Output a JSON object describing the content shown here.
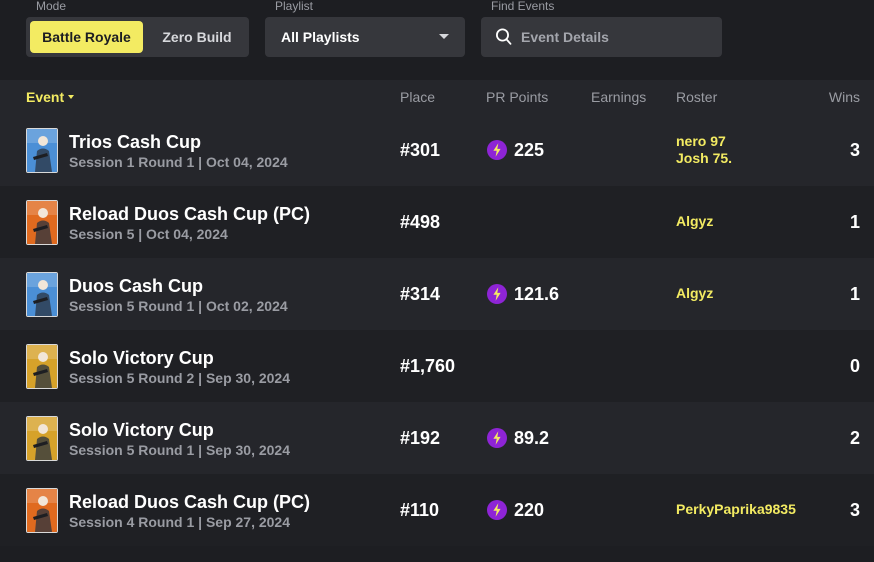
{
  "filters": {
    "mode_label": "Mode",
    "mode_options": [
      "Battle Royale",
      "Zero Build"
    ],
    "playlist_label": "Playlist",
    "playlist_value": "All Playlists",
    "find_label": "Find Events",
    "search_placeholder": "Event Details"
  },
  "table": {
    "headers": {
      "event": "Event",
      "place": "Place",
      "pr_points": "PR Points",
      "earnings": "Earnings",
      "roster": "Roster",
      "wins": "Wins"
    },
    "rows": [
      {
        "name": "Trios Cash Cup",
        "details": "Session 1 Round 1 | Oct 04, 2024",
        "place": "#301",
        "pr_points": "225",
        "earnings": "",
        "roster": [
          "nero 97",
          "Josh 75."
        ],
        "wins": "3",
        "thumb": "blue"
      },
      {
        "name": "Reload Duos Cash Cup (PC)",
        "details": "Session 5 | Oct 04, 2024",
        "place": "#498",
        "pr_points": "",
        "earnings": "",
        "roster": [
          "Algyz"
        ],
        "wins": "1",
        "thumb": "orange"
      },
      {
        "name": "Duos Cash Cup",
        "details": "Session 5 Round 1 | Oct 02, 2024",
        "place": "#314",
        "pr_points": "121.6",
        "earnings": "",
        "roster": [
          "Algyz"
        ],
        "wins": "1",
        "thumb": "blue"
      },
      {
        "name": "Solo Victory Cup",
        "details": "Session 5 Round 2 | Sep 30, 2024",
        "place": "#1,760",
        "pr_points": "",
        "earnings": "",
        "roster": [],
        "wins": "0",
        "thumb": "gold"
      },
      {
        "name": "Solo Victory Cup",
        "details": "Session 5 Round 1 | Sep 30, 2024",
        "place": "#192",
        "pr_points": "89.2",
        "earnings": "",
        "roster": [],
        "wins": "2",
        "thumb": "gold"
      },
      {
        "name": "Reload Duos Cash Cup (PC)",
        "details": "Session 4 Round 1 | Sep 27, 2024",
        "place": "#110",
        "pr_points": "220",
        "earnings": "",
        "roster": [
          "PerkyPaprika9835"
        ],
        "wins": "3",
        "thumb": "orange"
      }
    ]
  },
  "colors": {
    "accent": "#f3eb62",
    "pr_icon": "#8e24d6",
    "thumb_blue": "#4b8fd6",
    "thumb_orange": "#e06a1f",
    "thumb_gold": "#d6a22a"
  },
  "icons": {
    "search": "search-icon",
    "pr": "lightning-bolt-icon",
    "dropdown": "chevron-down-icon",
    "sort": "sort-caret-icon"
  }
}
